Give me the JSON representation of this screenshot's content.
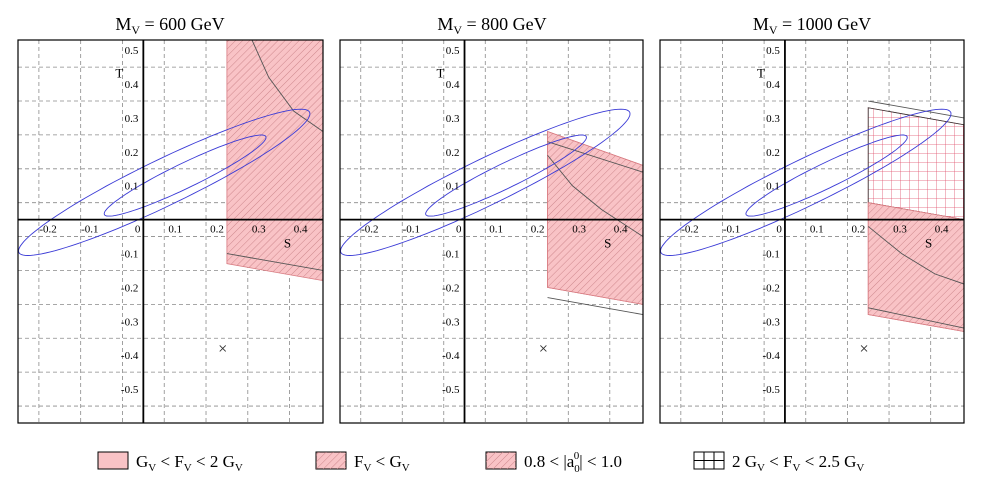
{
  "chart_data": [
    {
      "type": "scatter",
      "title_main": "M",
      "title_sub": "V",
      "title_value": " = 600 GeV",
      "xlabel": "S",
      "ylabel": "T",
      "xlim": [
        -0.3,
        0.43
      ],
      "ylim": [
        -0.6,
        0.53
      ],
      "xticks": [
        "-0.2",
        "-0.1",
        "0",
        "0.1",
        "0.2",
        "0.3",
        "0.4"
      ],
      "yticks": [
        "0.5",
        "0.4",
        "0.3",
        "0.2",
        "0.1",
        "-0.1",
        "-0.2",
        "-0.3",
        "-0.4",
        "-0.5"
      ],
      "ellipses": [
        {
          "name": "outer contour",
          "cx": 0.05,
          "cy": 0.11,
          "rx": 0.405,
          "ry": 0.065,
          "angle_deg": 31
        },
        {
          "name": "inner contour",
          "cx": 0.1,
          "cy": 0.13,
          "rx": 0.225,
          "ry": 0.035,
          "angle_deg": 31
        }
      ],
      "reference_point": {
        "s": 0.19,
        "t": -0.38
      },
      "regions": [
        {
          "name": "GV<FV<2GV",
          "polygon": [
            [
              0.2,
              0.53
            ],
            [
              0.43,
              0.53
            ],
            [
              0.43,
              -0.13
            ],
            [
              0.2,
              -0.08
            ]
          ]
        },
        {
          "name": "FV<GV",
          "polygon": [
            [
              0.2,
              0.53
            ],
            [
              0.43,
              0.53
            ],
            [
              0.43,
              -0.13
            ],
            [
              0.2,
              -0.08
            ]
          ]
        },
        {
          "name": "a00 band",
          "polygon": [
            [
              0.2,
              0.53
            ],
            [
              0.43,
              0.53
            ],
            [
              0.43,
              -0.18
            ],
            [
              0.2,
              -0.13
            ]
          ]
        }
      ],
      "boundary_lines": [
        [
          [
            0.2,
            -0.1
          ],
          [
            0.43,
            -0.15
          ]
        ],
        [
          [
            0.26,
            0.53
          ],
          [
            0.3,
            0.42
          ],
          [
            0.36,
            0.32
          ],
          [
            0.43,
            0.26
          ]
        ]
      ]
    },
    {
      "type": "scatter",
      "title_main": "M",
      "title_sub": "V",
      "title_value": " = 800 GeV",
      "xlabel": "S",
      "ylabel": "T",
      "xlim": [
        -0.3,
        0.43
      ],
      "ylim": [
        -0.6,
        0.53
      ],
      "xticks": [
        "-0.2",
        "-0.1",
        "0",
        "0.1",
        "0.2",
        "0.3",
        "0.4"
      ],
      "yticks": [
        "0.5",
        "0.4",
        "0.3",
        "0.2",
        "0.1",
        "-0.1",
        "-0.2",
        "-0.3",
        "-0.4",
        "-0.5"
      ],
      "ellipses": [
        {
          "name": "outer contour",
          "cx": 0.05,
          "cy": 0.11,
          "rx": 0.405,
          "ry": 0.065,
          "angle_deg": 31
        },
        {
          "name": "inner contour",
          "cx": 0.1,
          "cy": 0.13,
          "rx": 0.225,
          "ry": 0.035,
          "angle_deg": 31
        }
      ],
      "reference_point": {
        "s": 0.19,
        "t": -0.38
      },
      "regions": [
        {
          "name": "GV<FV<2GV",
          "polygon": [
            [
              0.2,
              0.26
            ],
            [
              0.43,
              0.16
            ],
            [
              0.43,
              -0.25
            ],
            [
              0.2,
              -0.2
            ]
          ]
        },
        {
          "name": "FV<GV",
          "polygon": [
            [
              0.2,
              0.26
            ],
            [
              0.43,
              0.16
            ],
            [
              0.43,
              -0.25
            ],
            [
              0.2,
              -0.2
            ]
          ]
        }
      ],
      "boundary_lines": [
        [
          [
            0.2,
            0.23
          ],
          [
            0.43,
            0.14
          ]
        ],
        [
          [
            0.2,
            -0.23
          ],
          [
            0.43,
            -0.28
          ]
        ],
        [
          [
            0.2,
            0.19
          ],
          [
            0.26,
            0.1
          ],
          [
            0.33,
            0.03
          ],
          [
            0.43,
            -0.05
          ]
        ]
      ]
    },
    {
      "type": "scatter",
      "title_main": "M",
      "title_sub": "V",
      "title_value": " = 1000 GeV",
      "xlabel": "S",
      "ylabel": "T",
      "xlim": [
        -0.3,
        0.43
      ],
      "ylim": [
        -0.6,
        0.53
      ],
      "xticks": [
        "-0.2",
        "-0.1",
        "0",
        "0.1",
        "0.2",
        "0.3",
        "0.4"
      ],
      "yticks": [
        "0.5",
        "0.4",
        "0.3",
        "0.2",
        "0.1",
        "-0.1",
        "-0.2",
        "-0.3",
        "-0.4",
        "-0.5"
      ],
      "ellipses": [
        {
          "name": "outer contour",
          "cx": 0.05,
          "cy": 0.11,
          "rx": 0.405,
          "ry": 0.065,
          "angle_deg": 31
        },
        {
          "name": "inner contour",
          "cx": 0.1,
          "cy": 0.13,
          "rx": 0.225,
          "ry": 0.035,
          "angle_deg": 31
        }
      ],
      "reference_point": {
        "s": 0.19,
        "t": -0.38
      },
      "regions": [
        {
          "name": "2GV<FV<2.5GV",
          "polygon": [
            [
              0.2,
              0.33
            ],
            [
              0.43,
              0.28
            ],
            [
              0.43,
              0.0
            ],
            [
              0.2,
              0.05
            ]
          ]
        },
        {
          "name": "GV<FV<2GV",
          "polygon": [
            [
              0.2,
              0.05
            ],
            [
              0.43,
              0.0
            ],
            [
              0.43,
              -0.33
            ],
            [
              0.2,
              -0.28
            ]
          ]
        },
        {
          "name": "FV<GV",
          "polygon": [
            [
              0.2,
              0.05
            ],
            [
              0.43,
              0.0
            ],
            [
              0.43,
              -0.33
            ],
            [
              0.2,
              -0.28
            ]
          ]
        }
      ],
      "boundary_lines": [
        [
          [
            0.2,
            0.35
          ],
          [
            0.43,
            0.3
          ]
        ],
        [
          [
            0.2,
            -0.26
          ],
          [
            0.43,
            -0.32
          ]
        ],
        [
          [
            0.2,
            -0.02
          ],
          [
            0.28,
            -0.1
          ],
          [
            0.36,
            -0.16
          ],
          [
            0.43,
            -0.19
          ]
        ]
      ]
    }
  ],
  "legend": [
    {
      "lhs_main": "G",
      "lhs_sub": "V",
      "op1": " < ",
      "mid_main": "F",
      "mid_sub": "V",
      "op2": " < 2 ",
      "rhs_main": "G",
      "rhs_sub": "V",
      "pattern": "fill"
    },
    {
      "lhs_main": "F",
      "lhs_sub": "V",
      "op1": " < ",
      "mid_main": "G",
      "mid_sub": "V",
      "op2": "",
      "rhs_main": "",
      "rhs_sub": "",
      "pattern": "hatch"
    },
    {
      "lhs_main": "0.8 < |a",
      "lhs_sub": "0",
      "lhs_sup": "0",
      "op1": "| < 1.0",
      "mid_main": "",
      "mid_sub": "",
      "op2": "",
      "rhs_main": "",
      "rhs_sub": "",
      "pattern": "fillhatch"
    },
    {
      "lhs_main": "2 G",
      "lhs_sub": "V",
      "op1": " < ",
      "mid_main": "F",
      "mid_sub": "V",
      "op2": " < 2.5 ",
      "rhs_main": "G",
      "rhs_sub": "V",
      "pattern": "grid"
    }
  ],
  "colors": {
    "region_fill": "#f9c3c6",
    "region_edge": "#d87a80",
    "hatch": "#c98086",
    "grid": "#e0506a",
    "ellipse": "#3b3bd6"
  }
}
